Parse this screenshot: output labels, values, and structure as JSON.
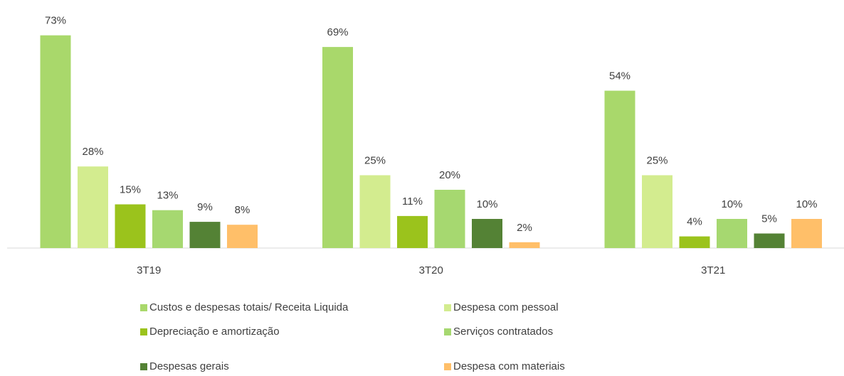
{
  "chart_data": {
    "type": "bar",
    "categories": [
      "3T19",
      "3T20",
      "3T21"
    ],
    "series": [
      {
        "name": "Custos e despesas totais/ Receita Liquida",
        "color": "#a9d86b",
        "values": [
          73,
          69,
          54
        ],
        "value_labels": [
          "73%",
          "69%",
          "54%"
        ]
      },
      {
        "name": "Despesa com pessoal",
        "color": "#d3ec8f",
        "values": [
          28,
          25,
          25
        ],
        "value_labels": [
          "28%",
          "25%",
          "25%"
        ]
      },
      {
        "name": "Depreciação e amortização",
        "color": "#9bc31c",
        "values": [
          15,
          11,
          4
        ],
        "value_labels": [
          "15%",
          "11%",
          "4%"
        ]
      },
      {
        "name": "Serviços contratados",
        "color": "#a6d870",
        "values": [
          13,
          20,
          10
        ],
        "value_labels": [
          "13%",
          "20%",
          "10%"
        ]
      },
      {
        "name": "Despesas gerais",
        "color": "#548235",
        "values": [
          9,
          10,
          5
        ],
        "value_labels": [
          "9%",
          "10%",
          "5%"
        ]
      },
      {
        "name": "Despesa com materiais",
        "color": "#ffbf69",
        "values": [
          8,
          2,
          10
        ],
        "value_labels": [
          "8%",
          "2%",
          "10%"
        ]
      }
    ],
    "legend": "bottom"
  }
}
